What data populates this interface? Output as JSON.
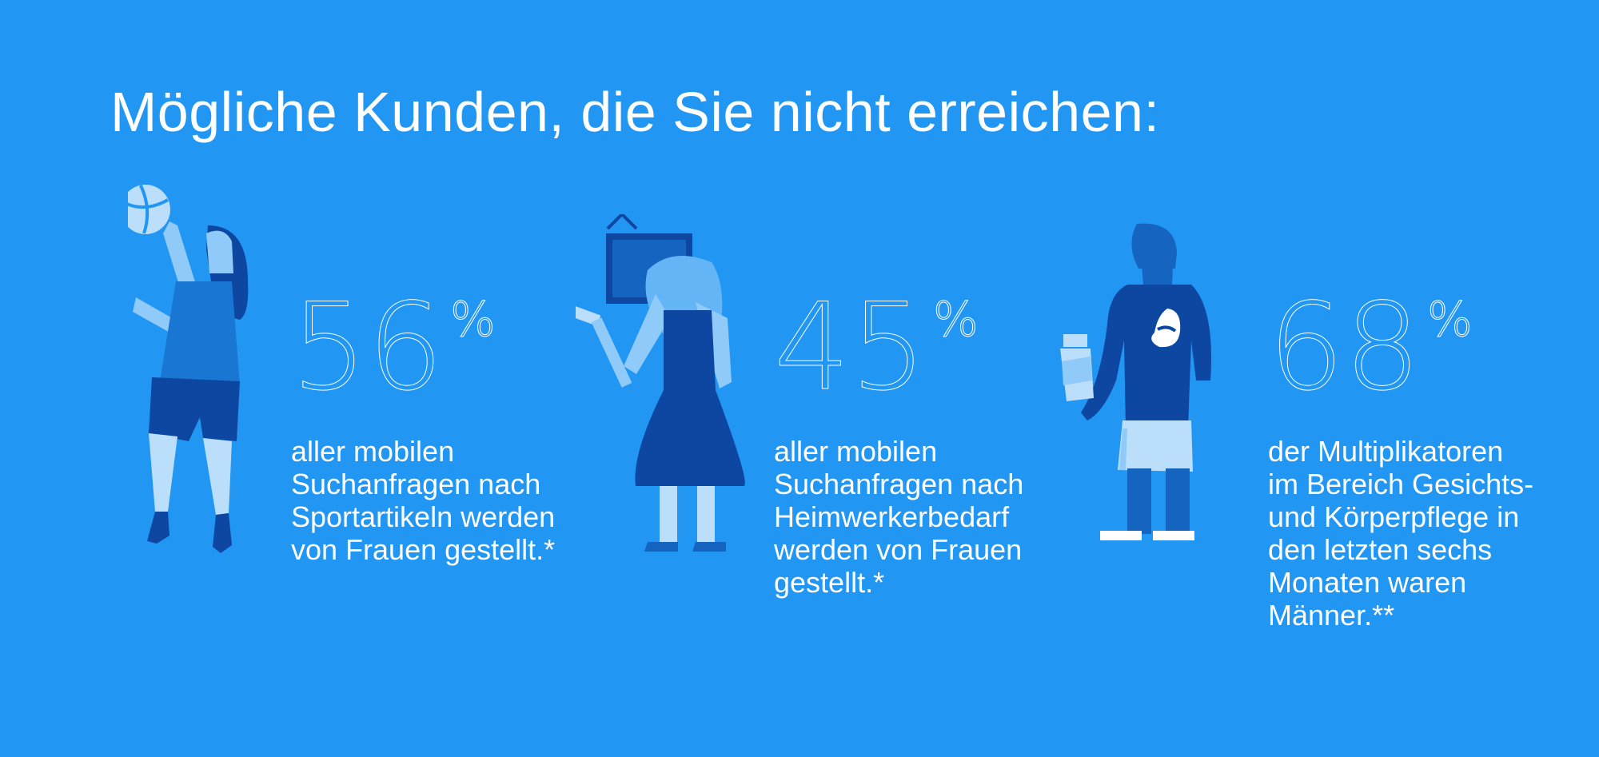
{
  "title": "Mögliche Kunden, die Sie nicht erreichen:",
  "colors": {
    "background": "#2196F3",
    "dark_blue": "#0D47A1",
    "mid_blue": "#1976D2",
    "light_blue": "#90CAF9",
    "pale_blue": "#BBDEFB"
  },
  "stats": [
    {
      "value": "56",
      "unit": "%",
      "lines": [
        "aller mobilen",
        "Suchanfragen nach",
        "Sportartikeln werden",
        "von Frauen gestellt.*"
      ],
      "icon": "woman-volleyball-icon"
    },
    {
      "value": "45",
      "unit": "%",
      "lines": [
        "aller mobilen",
        "Suchanfragen nach",
        "Heimwerkerbedarf",
        "werden von Frauen",
        "gestellt.*"
      ],
      "icon": "woman-hammer-icon"
    },
    {
      "value": "68",
      "unit": "%",
      "lines": [
        "der Multiplikatoren",
        "im Bereich Gesichts-",
        "und Körperpflege in",
        "den letzten sechs",
        "Monaten waren",
        "Männer.**"
      ],
      "icon": "man-towel-icon"
    }
  ]
}
